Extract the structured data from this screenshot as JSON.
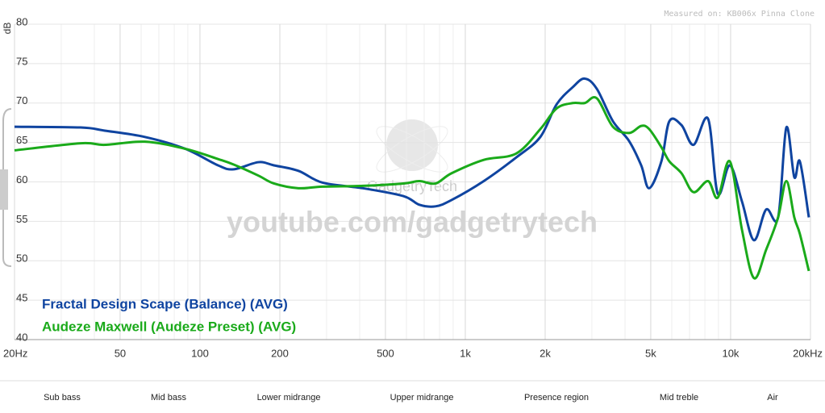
{
  "chart_data": {
    "type": "line",
    "annotation": "Measured on: KB006x Pinna Clone",
    "watermark": "youtube.com/gadgetrytech",
    "logo_text": "GadgetryTech",
    "y_label": "dB",
    "log_x": true,
    "grid": true,
    "xlim": [
      20,
      20000
    ],
    "ylim": [
      40,
      80
    ],
    "xticks": [
      {
        "value": 20,
        "label": "20Hz"
      },
      50,
      100,
      200,
      500,
      {
        "value": 1000,
        "label": "1k"
      },
      {
        "value": 2000,
        "label": "2k"
      },
      {
        "value": 5000,
        "label": "5k"
      },
      {
        "value": 10000,
        "label": "10k"
      },
      {
        "value": 20000,
        "label": "20kHz"
      }
    ],
    "minor_xgrid": [
      30,
      40,
      60,
      70,
      80,
      90,
      300,
      400,
      600,
      700,
      800,
      900,
      3000,
      4000,
      6000,
      7000,
      8000,
      9000
    ],
    "yticks": [
      40,
      45,
      50,
      55,
      60,
      65,
      70,
      75,
      80
    ],
    "x": [
      20,
      35.5,
      43.8,
      62,
      88,
      117,
      134,
      166,
      190,
      235,
      290,
      411,
      584,
      671,
      772,
      888,
      1174,
      1556,
      1918,
      2206,
      2538,
      2818,
      3132,
      3600,
      4140,
      4602,
      4932,
      5483,
      5877,
      6530,
      7248,
      8221,
      8942,
      9934,
      11040,
      12245,
      13612,
      15100,
      16220,
      17380,
      18240,
      19720
    ],
    "series": [
      {
        "name": "Fractal Design Scape (Balance) (AVG)",
        "color": "#0f44a0",
        "values": [
          67.0,
          66.9,
          66.5,
          65.7,
          64.2,
          62.1,
          61.6,
          62.5,
          62.1,
          61.4,
          59.9,
          59.2,
          58.2,
          57.1,
          56.9,
          57.7,
          60.1,
          63.1,
          65.7,
          69.8,
          72.0,
          73.1,
          71.8,
          67.7,
          65.2,
          62.1,
          59.2,
          62.6,
          67.7,
          67.2,
          64.7,
          68.0,
          58.5,
          62.1,
          57.5,
          52.6,
          56.5,
          55.5,
          66.9,
          60.6,
          62.6,
          55.5
        ]
      },
      {
        "name": "Audeze Maxwell (Audeze Preset) (AVG)",
        "color": "#1aaa1a",
        "values": [
          64.0,
          64.9,
          64.7,
          65.1,
          64.2,
          62.9,
          62.2,
          60.8,
          59.8,
          59.2,
          59.4,
          59.5,
          59.8,
          60.1,
          59.8,
          61.1,
          62.8,
          63.6,
          66.7,
          69.3,
          70.0,
          70.0,
          70.6,
          67.0,
          66.2,
          67.1,
          66.7,
          64.4,
          62.6,
          61.1,
          58.7,
          60.1,
          58.0,
          62.6,
          53.9,
          47.8,
          51.4,
          55.5,
          60.1,
          55.5,
          53.4,
          48.7
        ]
      }
    ],
    "bands": [
      "Sub bass",
      "Mid bass",
      "Lower midrange",
      "Upper midrange",
      "Presence region",
      "Mid treble",
      "Air"
    ]
  }
}
